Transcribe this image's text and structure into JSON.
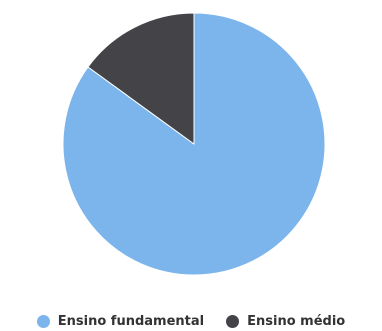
{
  "chart_data": {
    "type": "pie",
    "categories": [
      "Ensino fundamental",
      "Ensino médio"
    ],
    "values": [
      85,
      15
    ],
    "colors": [
      "#7cb5ec",
      "#434348"
    ],
    "slice_border_color": "#ffffff",
    "legend_position": "bottom-center",
    "start_angle_deg": 0,
    "direction": "clockwise"
  }
}
